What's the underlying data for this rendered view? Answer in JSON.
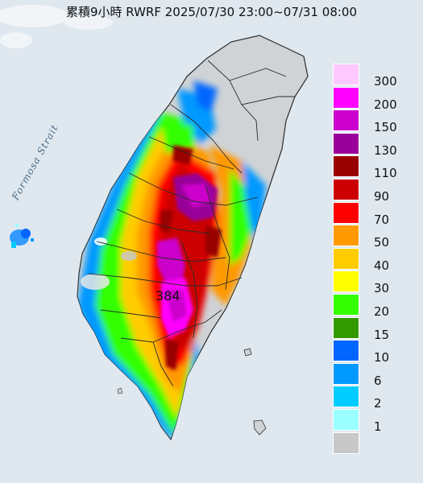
{
  "title": "累積9小時 RWRF 2025/07/30 23:00~07/31 08:00",
  "sea_label": "Formosa Strait",
  "max_value_label": "384",
  "colors": {
    "sea": "#dfe8ef",
    "land_gray": "#cfd3d6",
    "county_border": "#2b2b2b"
  },
  "legend": {
    "items": [
      {
        "label": "300",
        "color": "#ffc8ff"
      },
      {
        "label": "200",
        "color": "#ff00ff"
      },
      {
        "label": "150",
        "color": "#cc00cc"
      },
      {
        "label": "130",
        "color": "#990099"
      },
      {
        "label": "110",
        "color": "#990000"
      },
      {
        "label": "90",
        "color": "#cc0000"
      },
      {
        "label": "70",
        "color": "#ff0000"
      },
      {
        "label": "50",
        "color": "#ff9900"
      },
      {
        "label": "40",
        "color": "#ffcc00"
      },
      {
        "label": "30",
        "color": "#ffff00"
      },
      {
        "label": "20",
        "color": "#33ff00"
      },
      {
        "label": "15",
        "color": "#339900"
      },
      {
        "label": "10",
        "color": "#0066ff"
      },
      {
        "label": "6",
        "color": "#0099ff"
      },
      {
        "label": "2",
        "color": "#00ccff"
      },
      {
        "label": "1",
        "color": "#99ffff"
      },
      {
        "label": "",
        "color": "#c8c8c8"
      }
    ]
  }
}
